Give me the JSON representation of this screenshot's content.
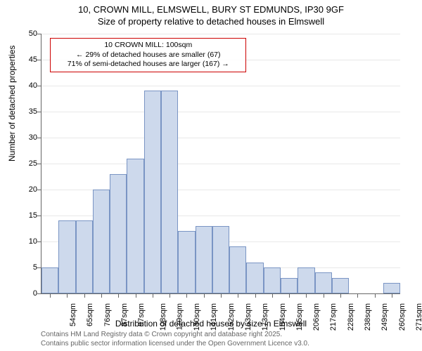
{
  "title_line1": "10, CROWN MILL, ELMSWELL, BURY ST EDMUNDS, IP30 9GF",
  "title_line2": "Size of property relative to detached houses in Elmswell",
  "chart": {
    "type": "histogram",
    "y_axis_title": "Number of detached properties",
    "x_axis_title": "Distribution of detached houses by size in Elmswell",
    "ylim": [
      0,
      50
    ],
    "ytick_step": 5,
    "bar_fill": "#cdd9ec",
    "bar_stroke": "#7a95c4",
    "grid_color": "#666666",
    "axis_color": "#666666",
    "background_color": "#ffffff",
    "bar_width": 1.0,
    "x_labels": [
      "54sqm",
      "65sqm",
      "76sqm",
      "87sqm",
      "97sqm",
      "108sqm",
      "119sqm",
      "130sqm",
      "141sqm",
      "152sqm",
      "163sqm",
      "173sqm",
      "184sqm",
      "195sqm",
      "206sqm",
      "217sqm",
      "228sqm",
      "238sqm",
      "249sqm",
      "260sqm",
      "271sqm"
    ],
    "values": [
      5,
      14,
      14,
      20,
      23,
      26,
      39,
      39,
      12,
      13,
      13,
      9,
      6,
      5,
      3,
      5,
      4,
      3,
      0,
      0,
      2
    ]
  },
  "annotation": {
    "line1": "10 CROWN MILL: 100sqm",
    "line2": "← 29% of detached houses are smaller (67)",
    "line3": "71% of semi-detached houses are larger (167) →",
    "border_color": "#cc0000"
  },
  "footer": {
    "line1": "Contains HM Land Registry data © Crown copyright and database right 2025.",
    "line2": "Contains public sector information licensed under the Open Government Licence v3.0."
  }
}
